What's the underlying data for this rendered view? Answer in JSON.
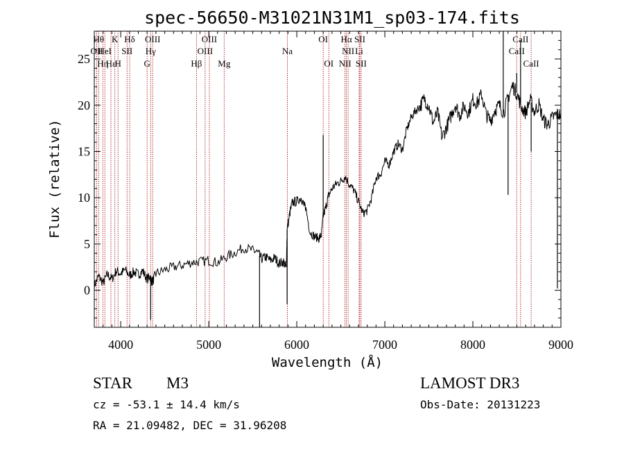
{
  "chart_data": {
    "type": "line",
    "title": "spec-56650-M31021N31M1_sp03-174.fits",
    "xlabel": "Wavelength (Å)",
    "ylabel": "Flux (relative)",
    "xlim": [
      3700,
      9000
    ],
    "ylim": [
      -4,
      28
    ],
    "x_ticks": [
      4000,
      5000,
      6000,
      7000,
      8000,
      9000
    ],
    "y_ticks": [
      0,
      5,
      10,
      15,
      20,
      25
    ],
    "line_color": "#000000",
    "marker_color": "#a40000",
    "series": [
      {
        "x": [
          3700,
          3750,
          3800,
          3850,
          3900,
          3950,
          4000,
          4050,
          4100,
          4150,
          4200,
          4250,
          4300,
          4330,
          4360,
          4400,
          4500,
          4600,
          4700,
          4800,
          4900,
          5000,
          5100,
          5200,
          5300,
          5400,
          5500,
          5550,
          5600,
          5650,
          5700,
          5750,
          5800,
          5850,
          5880,
          5890,
          5920,
          5950,
          6000,
          6050,
          6080,
          6100,
          6150,
          6200,
          6250,
          6280,
          6300,
          6330,
          6360,
          6400,
          6450,
          6500,
          6550,
          6600,
          6650,
          6700,
          6750,
          6800,
          6850,
          6900,
          6950,
          7000,
          7050,
          7100,
          7150,
          7200,
          7250,
          7300,
          7350,
          7400,
          7450,
          7500,
          7550,
          7600,
          7650,
          7700,
          7750,
          7800,
          7850,
          7900,
          7950,
          8000,
          8050,
          8100,
          8150,
          8200,
          8250,
          8300,
          8350,
          8400,
          8450,
          8500,
          8550,
          8600,
          8650,
          8700,
          8750,
          8800,
          8850,
          8900,
          8950,
          9000
        ],
        "y": [
          0.5,
          1.5,
          0.8,
          1.7,
          1.2,
          2.1,
          1.8,
          2.2,
          1.6,
          2.0,
          1.7,
          2.1,
          1.2,
          1.5,
          0.9,
          1.8,
          2.2,
          2.5,
          2.7,
          3.0,
          3.1,
          3.2,
          3.0,
          3.6,
          4.1,
          4.6,
          4.3,
          4.1,
          3.4,
          3.6,
          3.2,
          3.5,
          2.9,
          3.1,
          2.3,
          6.5,
          8.3,
          9.5,
          9.6,
          10.0,
          9.2,
          9.0,
          6.3,
          5.8,
          5.6,
          6.0,
          8.0,
          9.0,
          10.2,
          11.0,
          11.5,
          11.8,
          12.3,
          11.4,
          10.8,
          9.6,
          8.3,
          8.6,
          10.0,
          12.2,
          12.5,
          13.9,
          13.6,
          15.0,
          15.8,
          15.2,
          17.4,
          18.7,
          19.4,
          19.9,
          20.7,
          19.9,
          18.1,
          19.2,
          16.5,
          17.6,
          18.8,
          20.1,
          18.9,
          19.9,
          19.2,
          20.6,
          20.2,
          21.2,
          19.0,
          18.3,
          19.5,
          20.0,
          19.2,
          20.8,
          22.1,
          21.3,
          19.8,
          19.2,
          20.6,
          19.3,
          20.1,
          18.4,
          17.9,
          18.6,
          19.0,
          19.0
        ]
      }
    ],
    "spikes": [
      {
        "x": 4340,
        "y": -3.2
      },
      {
        "x": 5577,
        "y": -4.0
      },
      {
        "x": 5890,
        "y": -1.5
      },
      {
        "x": 6300,
        "y": 16.8
      },
      {
        "x": 8345,
        "y": 28.0
      },
      {
        "x": 8400,
        "y": 10.3
      },
      {
        "x": 8498,
        "y": 23.5
      },
      {
        "x": 8542,
        "y": 27.0
      },
      {
        "x": 8662,
        "y": 15.0
      },
      {
        "x": 8960,
        "y": 0.2
      }
    ],
    "line_markers": [
      {
        "x": 3750,
        "row": 0,
        "label": "Hθ"
      },
      {
        "x": 3727,
        "row": 1,
        "label": "OII"
      },
      {
        "x": 3797,
        "row": 2,
        "label": "Hη"
      },
      {
        "x": 3820,
        "row": 1,
        "label": "HeI"
      },
      {
        "x": 3889,
        "row": 2,
        "label": "Hε"
      },
      {
        "x": 3934,
        "row": 0,
        "label": "K"
      },
      {
        "x": 3969,
        "row": 2,
        "label": "H"
      },
      {
        "x": 4072,
        "row": 1,
        "label": "SII"
      },
      {
        "x": 4102,
        "row": 0,
        "label": "Hδ"
      },
      {
        "x": 4300,
        "row": 2,
        "label": "G"
      },
      {
        "x": 4340,
        "row": 1,
        "label": "Hγ"
      },
      {
        "x": 4363,
        "row": 0,
        "label": "OIII"
      },
      {
        "x": 4861,
        "row": 2,
        "label": "Hβ"
      },
      {
        "x": 4959,
        "row": 1,
        "label": "OIII"
      },
      {
        "x": 5007,
        "row": 0,
        "label": "OIII"
      },
      {
        "x": 5175,
        "row": 2,
        "label": "Mg"
      },
      {
        "x": 5893,
        "row": 1,
        "label": "Na"
      },
      {
        "x": 6300,
        "row": 0,
        "label": "OI"
      },
      {
        "x": 6364,
        "row": 2,
        "label": "OI"
      },
      {
        "x": 6548,
        "row": 2,
        "label": "NII"
      },
      {
        "x": 6563,
        "row": 0,
        "label": "Hα"
      },
      {
        "x": 6583,
        "row": 1,
        "label": "NII"
      },
      {
        "x": 6708,
        "row": 1,
        "label": "Li"
      },
      {
        "x": 6716,
        "row": 0,
        "label": "SII"
      },
      {
        "x": 6731,
        "row": 2,
        "label": "SII"
      },
      {
        "x": 8498,
        "row": 1,
        "label": "CaII"
      },
      {
        "x": 8542,
        "row": 0,
        "label": "CaII"
      },
      {
        "x": 8662,
        "row": 2,
        "label": "CaII"
      }
    ]
  },
  "info": {
    "class_label": "STAR",
    "subclass": "M3",
    "survey": "LAMOST DR3",
    "cz": "cz = -53.1 ± 14.4 km/s",
    "obs_date": "Obs-Date: 20131223",
    "radec": "RA =  21.09482, DEC =  31.96208"
  }
}
